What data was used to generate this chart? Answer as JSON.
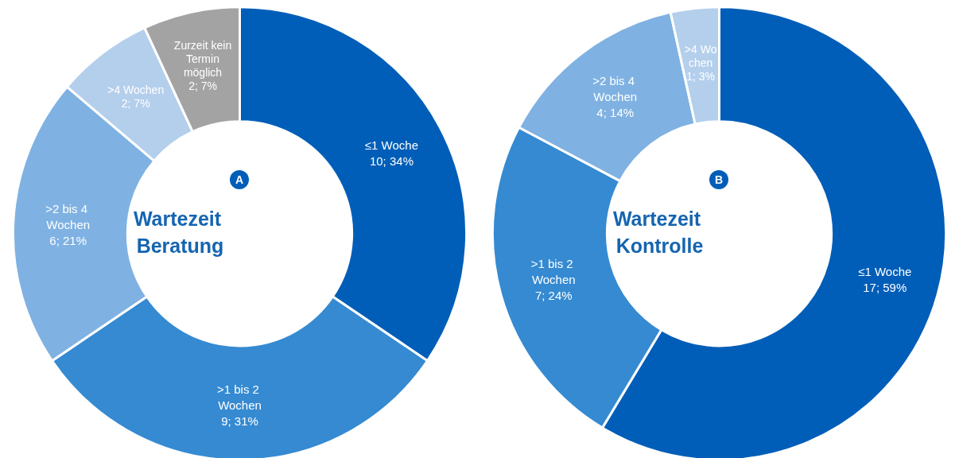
{
  "chart_data": [
    {
      "type": "donut",
      "title": "Wartezeit Beratung",
      "annotations": [
        "A"
      ],
      "categories": [
        "≤1 Woche",
        ">1 bis 2 Wochen",
        ">2 bis 4 Wochen",
        ">4 Wochen",
        "Zurzeit kein Termin möglich"
      ],
      "values": [
        10,
        9,
        6,
        2,
        2
      ],
      "value_labels": [
        "10; 34%",
        "9; 31%",
        "6; 21%",
        "2; 7%",
        "2; 7%"
      ],
      "colors": [
        "#005eb8",
        "#358ad2",
        "#7fb2e2",
        "#b4cfec",
        "#a3a3a3"
      ],
      "legend": false
    },
    {
      "type": "donut",
      "title": "Wartezeit Kontrolle",
      "annotations": [
        "B"
      ],
      "categories": [
        "≤1 Woche",
        ">1 bis 2 Wochen",
        ">2 bis 4 Wochen",
        ">4 Wochen"
      ],
      "values": [
        17,
        7,
        4,
        1
      ],
      "value_labels": [
        "17; 59%",
        "7; 24%",
        "4; 14%",
        "1; 3%"
      ],
      "colors": [
        "#005eb8",
        "#358ad2",
        "#7fb2e2",
        "#b4cfec"
      ],
      "legend": false
    }
  ]
}
